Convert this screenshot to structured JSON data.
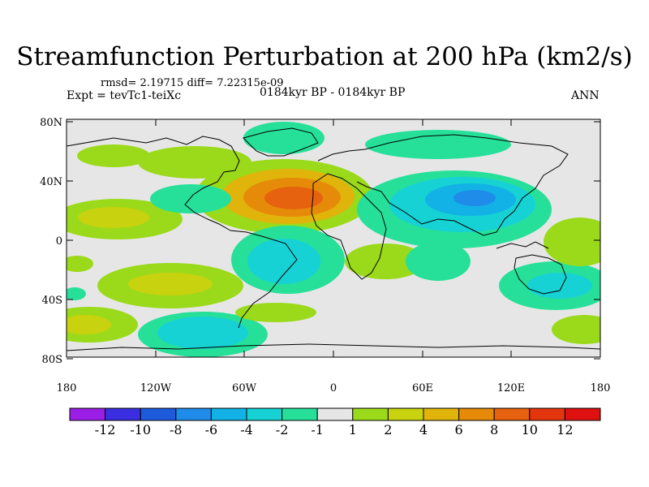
{
  "title": "Streamfunction Perturbation at 200 hPa (km2/s)",
  "stats": "rmsd= 2.19715 diff= 7.22315e-09",
  "experiment": "Expt = tevTc1-teiXc",
  "period": "0184kyr BP - 0184kyr BP",
  "season": "ANN",
  "lat_labels": [
    "80N",
    "40N",
    "0",
    "40S",
    "80S"
  ],
  "lon_labels": [
    "180",
    "120W",
    "60W",
    "0",
    "60E",
    "120E",
    "180"
  ],
  "colorbar": {
    "labels": [
      "-12",
      "-10",
      "-8",
      "-6",
      "-4",
      "-2",
      "-1",
      "1",
      "2",
      "4",
      "6",
      "8",
      "10",
      "12"
    ],
    "colors": [
      "#9a1ee6",
      "#3a2ee0",
      "#1e5adc",
      "#1e8ce8",
      "#12b2e6",
      "#16d2d4",
      "#26e09a",
      "#e6e6e6",
      "#9ada1a",
      "#c8d20e",
      "#e0b40a",
      "#e68a0a",
      "#e6620e",
      "#e4360e",
      "#de1010"
    ]
  }
}
